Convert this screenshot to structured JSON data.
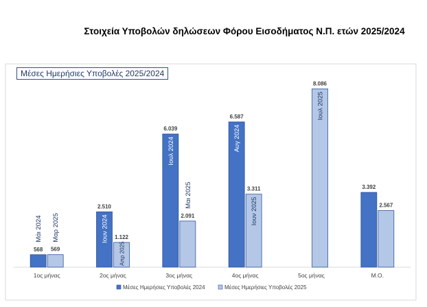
{
  "header": {
    "title": "Στοιχεία Υποβολών δηλώσεων Φόρου Εισοδήματος Ν.Π. ετών 2025/2024"
  },
  "chart_data": {
    "type": "bar",
    "title": "Μέσες Ημερήσιες Υποβολές 2025/2024",
    "categories": [
      "1ος μήνας",
      "2ος μήνας",
      "3ος μήνας",
      "4ος μήνας",
      "5ος μήνας",
      "Μ.Ο."
    ],
    "series": [
      {
        "name": "Μέσες Ημερήσιες Υποβολές 2024",
        "color": "#4472c4",
        "values": [
          568,
          2510,
          6039,
          6587,
          null,
          3392
        ],
        "value_labels": [
          "568",
          "2.510",
          "6.039",
          "6.587",
          "",
          "3.392"
        ],
        "month_labels": [
          "Μάι 2024",
          "Ιουν 2024",
          "Ιουλ 2024",
          "Αυγ 2024",
          "",
          ""
        ]
      },
      {
        "name": "Μέσες Ημερήσιες Υποβολές 2025",
        "color": "#b4c7e7",
        "values": [
          569,
          1122,
          2091,
          3311,
          8086,
          2567
        ],
        "value_labels": [
          "569",
          "1.122",
          "2.091",
          "3.311",
          "8.086",
          "2.567"
        ],
        "month_labels": [
          "Μαρ 2025",
          "Απρ 2025",
          "Μαι 2025",
          "Ιουν 2025",
          "Ιουλ 2025",
          ""
        ]
      }
    ],
    "ylim": [
      0,
      9000
    ],
    "grid": false,
    "legend_position": "bottom"
  }
}
